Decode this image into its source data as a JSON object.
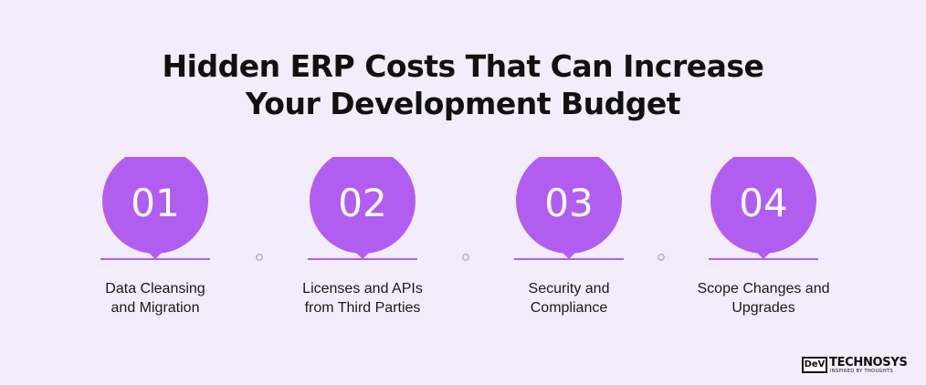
{
  "title": {
    "line1": "Hidden ERP Costs That Can Increase",
    "line2": "Your Development Budget"
  },
  "steps": [
    {
      "number": "01",
      "label_line1": "Data Cleansing",
      "label_line2": "and Migration"
    },
    {
      "number": "02",
      "label_line1": "Licenses and APIs",
      "label_line2": "from Third Parties"
    },
    {
      "number": "03",
      "label_line1": "Security and",
      "label_line2": "Compliance"
    },
    {
      "number": "04",
      "label_line1": "Scope Changes and",
      "label_line2": "Upgrades"
    }
  ],
  "logo": {
    "mark": "DeV",
    "name": "TECHNOSYS",
    "tagline": "INSPIRED BY THOUGHTS"
  },
  "colors": {
    "background": "#f3ecfb",
    "accent": "#b15ef0",
    "connector_dot": "#b9b0c4"
  }
}
